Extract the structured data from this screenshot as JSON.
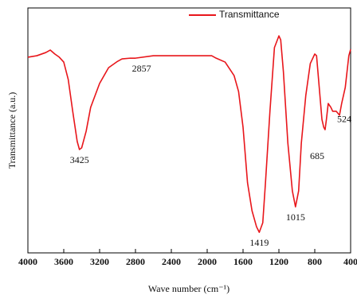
{
  "chart_data": {
    "type": "line",
    "xlabel": "Wave number (cm⁻¹)",
    "ylabel": "Transmittance (a.u.)",
    "x": [
      4000,
      3900,
      3800,
      3750,
      3700,
      3650,
      3600,
      3550,
      3500,
      3450,
      3425,
      3400,
      3350,
      3300,
      3200,
      3100,
      3000,
      2950,
      2857,
      2800,
      2600,
      2400,
      2200,
      2000,
      1950,
      1900,
      1800,
      1700,
      1650,
      1600,
      1550,
      1500,
      1450,
      1419,
      1380,
      1350,
      1300,
      1250,
      1200,
      1180,
      1150,
      1100,
      1050,
      1015,
      980,
      950,
      900,
      850,
      800,
      780,
      750,
      720,
      700,
      685,
      670,
      650,
      620,
      600,
      560,
      524,
      500,
      460,
      420,
      400
    ],
    "series": [
      {
        "name": "Transmittance",
        "color": "#e8161b",
        "values": [
          79.9,
          80.5,
          81.8,
          82.8,
          81.2,
          79.9,
          77.9,
          70.8,
          57.8,
          45.5,
          42.2,
          42.9,
          49.7,
          59.4,
          69.2,
          75.6,
          78.2,
          79.2,
          79.5,
          79.5,
          80.5,
          80.5,
          80.5,
          80.5,
          80.5,
          79.5,
          77.9,
          72.4,
          65.9,
          51.3,
          28.6,
          17.2,
          10.7,
          8.4,
          12.3,
          28.6,
          57.8,
          83.8,
          88.6,
          87.0,
          74.0,
          44.8,
          25.3,
          18.8,
          25.3,
          44.8,
          64.3,
          77.3,
          81.2,
          80.5,
          67.5,
          54.5,
          51.3,
          50.3,
          54.5,
          61.0,
          59.4,
          57.8,
          57.8,
          56.2,
          61.0,
          67.5,
          80.5,
          83.1
        ]
      }
    ],
    "annotations": [
      {
        "x": 3425,
        "y": 42.2
      },
      {
        "x": 2857,
        "y": 79.5
      },
      {
        "x": 1419,
        "y": 8.4
      },
      {
        "x": 1015,
        "y": 18.8
      },
      {
        "x": 685,
        "y": 50.3
      },
      {
        "x": 524,
        "y": 56.2
      }
    ],
    "xlim": [
      4000,
      400
    ],
    "ylim": [
      0,
      100
    ],
    "xticks": [
      4000,
      3600,
      3200,
      2800,
      2400,
      2000,
      1600,
      1200,
      800,
      400
    ],
    "legend": "top-right"
  }
}
